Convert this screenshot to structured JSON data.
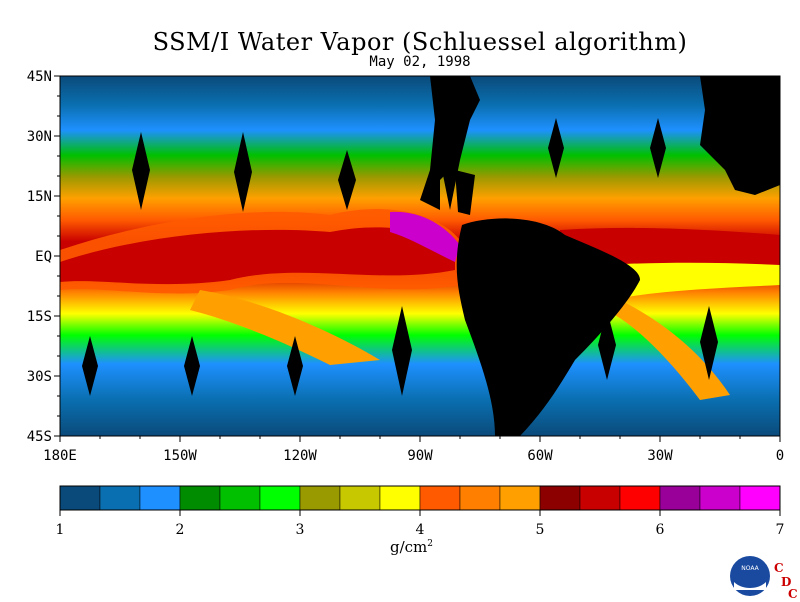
{
  "title": "SSM/I Water Vapor (Schluessel algorithm)",
  "subtitle": "May 02, 1998",
  "map": {
    "lon_range": [
      180,
      360
    ],
    "lat_range": [
      -45,
      45
    ],
    "lat_ticks": [
      "45N",
      "30N",
      "15N",
      "EQ",
      "15S",
      "30S",
      "45S"
    ],
    "lon_ticks": [
      "180E",
      "150W",
      "120W",
      "90W",
      "60W",
      "30W",
      "0"
    ]
  },
  "colorbar": {
    "ticks": [
      "1",
      "2",
      "3",
      "4",
      "5",
      "6",
      "7"
    ],
    "unit_base": "g/cm",
    "unit_exp": "2",
    "colors": [
      "#0a4a7a",
      "#0a6fb0",
      "#1e90ff",
      "#008c00",
      "#00c000",
      "#00ff00",
      "#999900",
      "#c8c800",
      "#ffff00",
      "#ff5a00",
      "#ff8000",
      "#ffa000",
      "#8c0000",
      "#c80000",
      "#ff0000",
      "#990099",
      "#cc00cc",
      "#ff00ff"
    ]
  },
  "logo": {
    "noaa": "NOAA",
    "cdc_c1": "C",
    "cdc_d": "D",
    "cdc_c2": "C",
    "brand_color": "#1a4aa0",
    "cdc_color": "#cc0000"
  }
}
